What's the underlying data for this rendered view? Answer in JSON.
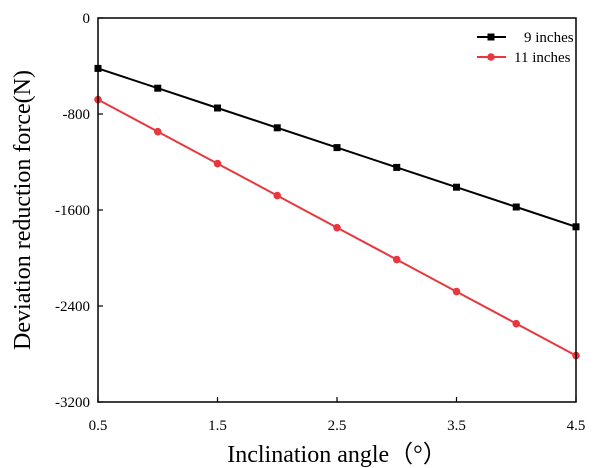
{
  "chart_data": {
    "type": "line",
    "xlabel": "Inclination angle（°）",
    "ylabel": "Deviation reduction force(N)",
    "xlim": [
      0.5,
      4.5
    ],
    "ylim": [
      -3200,
      0
    ],
    "x_ticks": [
      0.5,
      1.5,
      2.5,
      3.5,
      4.5
    ],
    "y_ticks": [
      0,
      -800,
      -1600,
      -2400,
      -3200
    ],
    "x_tick_labels": [
      "0.5",
      "1.5",
      "2.5",
      "3.5",
      "4.5"
    ],
    "y_tick_labels": [
      "0",
      "-800",
      "-1600",
      "-2400",
      "-3200"
    ],
    "grid": false,
    "legend_position": "top-right",
    "x": [
      0.5,
      1.0,
      1.5,
      2.0,
      2.5,
      3.0,
      3.5,
      4.0,
      4.5
    ],
    "series": [
      {
        "name": "9 inches",
        "color": "#000000",
        "marker": "square",
        "values": [
          -420,
          -585,
          -750,
          -915,
          -1080,
          -1245,
          -1410,
          -1575,
          -1740
        ]
      },
      {
        "name": "11 inches",
        "color": "#e8383d",
        "marker": "circle",
        "values": [
          -680,
          -947,
          -1213,
          -1480,
          -1747,
          -2013,
          -2280,
          -2547,
          -2813
        ]
      }
    ]
  }
}
